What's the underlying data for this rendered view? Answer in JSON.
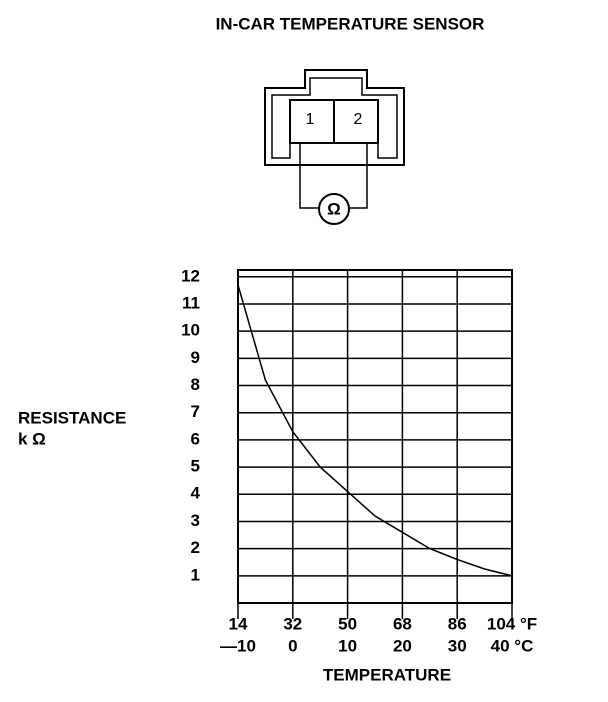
{
  "title": "IN-CAR TEMPERATURE SENSOR",
  "connector": {
    "pins": [
      "1",
      "2"
    ],
    "meter": "Ω"
  },
  "chart_data": {
    "type": "line",
    "ylabel": [
      "RESISTANCE",
      "k Ω"
    ],
    "xlabel": "TEMPERATURE",
    "x": [
      -10,
      -5,
      0,
      5,
      10,
      15,
      20,
      25,
      30,
      35,
      40
    ],
    "series": [
      {
        "color": "#000000",
        "values": [
          11.7,
          8.2,
          6.3,
          5.0,
          4.1,
          3.2,
          2.6,
          2.0,
          1.6,
          1.25,
          1.0
        ]
      }
    ],
    "xlim": [
      -10,
      40
    ],
    "xticks": [
      {
        "value": -10,
        "label": "—10"
      },
      0,
      10,
      20,
      30,
      {
        "value": 40,
        "label": "40 °C"
      }
    ],
    "xticks_fahrenheit": [
      "14",
      "32",
      "50",
      "68",
      "86",
      "104 °F"
    ],
    "ylim": [
      0,
      12.25
    ],
    "yticks": [
      1,
      2,
      3,
      4,
      5,
      6,
      7,
      8,
      9,
      10,
      11,
      12
    ],
    "grid": true
  }
}
